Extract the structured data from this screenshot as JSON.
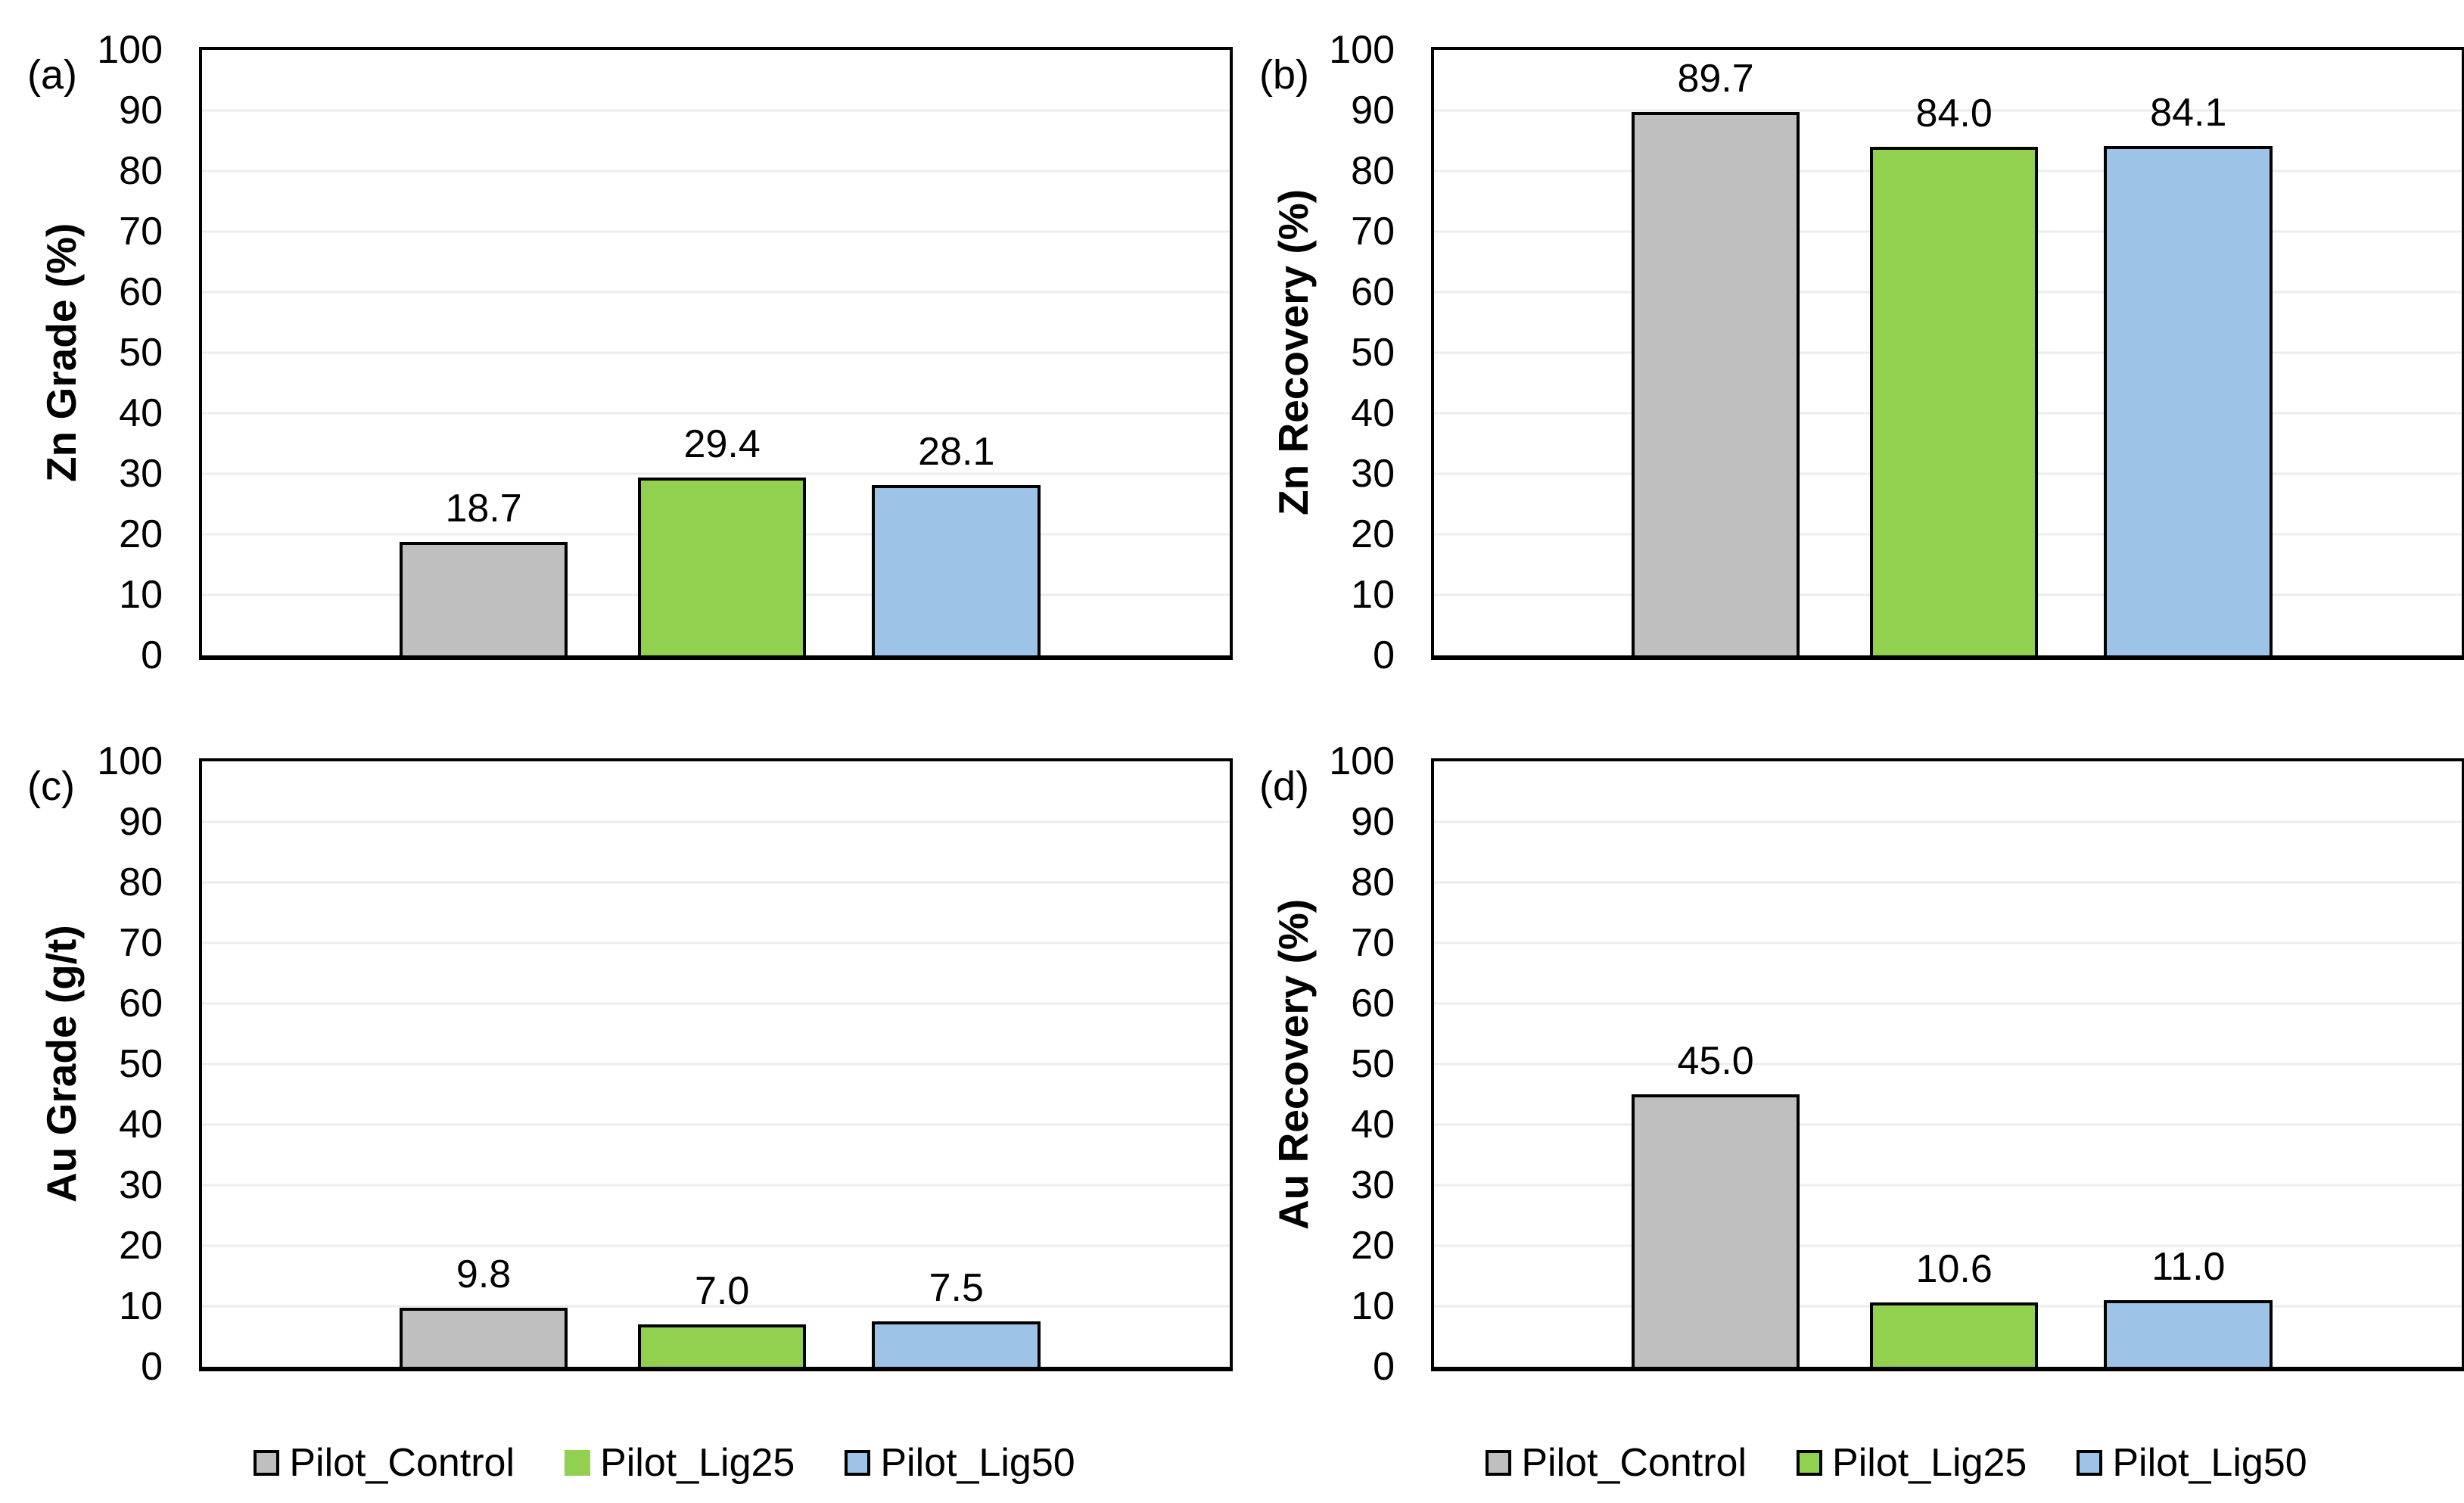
{
  "page": {
    "background": "#FFFFFF"
  },
  "palette": {
    "pilot_control": "#BFBFBF",
    "pilot_lig25": "#92D050",
    "pilot_lig50": "#9DC3E6",
    "bar_border": "#000000",
    "gridline": "#ECECEC",
    "plot_border": "#000000",
    "text": "#000000"
  },
  "chart_data": [
    {
      "type": "bar",
      "panel_label": "(a)",
      "ylabel": "Zn Grade (%)",
      "xlabel": "",
      "ylim": [
        0,
        100
      ],
      "ytick_step": 10,
      "ytick_labels": [
        "0",
        "10",
        "20",
        "30",
        "40",
        "50",
        "60",
        "70",
        "80",
        "90",
        "100"
      ],
      "grid": true,
      "legend_position": "bottom",
      "categories": [
        "Pilot_Control",
        "Pilot_Lig25",
        "Pilot_Lig50"
      ],
      "values": [
        18.7,
        29.4,
        28.1
      ],
      "value_labels": [
        "18.7",
        "29.4",
        "28.1"
      ],
      "bar_colors": [
        "#BFBFBF",
        "#92D050",
        "#9DC3E6"
      ]
    },
    {
      "type": "bar",
      "panel_label": "(b)",
      "ylabel": "Zn Recovery (%)",
      "xlabel": "",
      "ylim": [
        0,
        100
      ],
      "ytick_step": 10,
      "ytick_labels": [
        "0",
        "10",
        "20",
        "30",
        "40",
        "50",
        "60",
        "70",
        "80",
        "90",
        "100"
      ],
      "grid": true,
      "legend_position": "bottom",
      "categories": [
        "Pilot_Control",
        "Pilot_Lig25",
        "Pilot_Lig50"
      ],
      "values": [
        89.7,
        84.0,
        84.1
      ],
      "value_labels": [
        "89.7",
        "84.0",
        "84.1"
      ],
      "bar_colors": [
        "#BFBFBF",
        "#92D050",
        "#9DC3E6"
      ]
    },
    {
      "type": "bar",
      "panel_label": "(c)",
      "ylabel": "Au Grade (g/t)",
      "xlabel": "",
      "ylim": [
        0,
        100
      ],
      "ytick_step": 10,
      "ytick_labels": [
        "0",
        "10",
        "20",
        "30",
        "40",
        "50",
        "60",
        "70",
        "80",
        "90",
        "100"
      ],
      "grid": true,
      "legend_position": "bottom",
      "categories": [
        "Pilot_Control",
        "Pilot_Lig25",
        "Pilot_Lig50"
      ],
      "values": [
        9.8,
        7.0,
        7.5
      ],
      "value_labels": [
        "9.8",
        "7.0",
        "7.5"
      ],
      "bar_colors": [
        "#BFBFBF",
        "#92D050",
        "#9DC3E6"
      ]
    },
    {
      "type": "bar",
      "panel_label": "(d)",
      "ylabel": "Au Recovery (%)",
      "xlabel": "",
      "ylim": [
        0,
        100
      ],
      "ytick_step": 10,
      "ytick_labels": [
        "0",
        "10",
        "20",
        "30",
        "40",
        "50",
        "60",
        "70",
        "80",
        "90",
        "100"
      ],
      "grid": true,
      "legend_position": "bottom",
      "categories": [
        "Pilot_Control",
        "Pilot_Lig25",
        "Pilot_Lig50"
      ],
      "values": [
        45.0,
        10.6,
        11.0
      ],
      "value_labels": [
        "45.0",
        "10.6",
        "11.0"
      ],
      "bar_colors": [
        "#BFBFBF",
        "#92D050",
        "#9DC3E6"
      ]
    }
  ],
  "legends": [
    {
      "items": [
        {
          "label": "Pilot_Control",
          "color": "#BFBFBF",
          "bordered": true
        },
        {
          "label": "Pilot_Lig25",
          "color": "#92D050",
          "bordered": false
        },
        {
          "label": "Pilot_Lig50",
          "color": "#9DC3E6",
          "bordered": true
        }
      ]
    },
    {
      "items": [
        {
          "label": "Pilot_Control",
          "color": "#BFBFBF",
          "bordered": true
        },
        {
          "label": "Pilot_Lig25",
          "color": "#92D050",
          "bordered": true
        },
        {
          "label": "Pilot_Lig50",
          "color": "#9DC3E6",
          "bordered": true
        }
      ]
    }
  ]
}
